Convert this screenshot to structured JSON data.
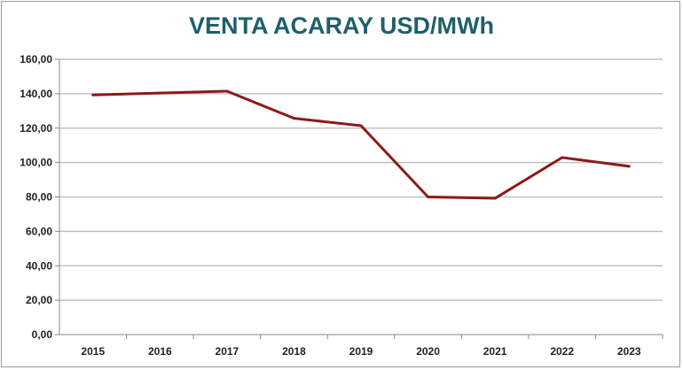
{
  "chart_data": {
    "type": "line",
    "title": "VENTA ACARAY USD/MWh",
    "xlabel": "",
    "ylabel": "",
    "categories": [
      "2015",
      "2016",
      "2017",
      "2018",
      "2019",
      "2020",
      "2021",
      "2022",
      "2023"
    ],
    "series": [
      {
        "name": "Venta Acaray USD/MWh",
        "values": [
          139.3,
          140.4,
          141.5,
          125.7,
          121.4,
          80.0,
          79.2,
          102.9,
          97.8
        ],
        "color": "#8b1a1a"
      }
    ],
    "ylim": [
      0,
      160
    ],
    "yticks": [
      0,
      20,
      40,
      60,
      80,
      100,
      120,
      140,
      160
    ],
    "ytick_labels": [
      "0,00",
      "20,00",
      "40,00",
      "60,00",
      "80,00",
      "100,00",
      "120,00",
      "140,00",
      "160,00"
    ],
    "grid": true,
    "legend": "none",
    "colors": {
      "title": "#1f5f6b",
      "grid": "#c0c0c0",
      "line": "#8b1a1a"
    }
  }
}
